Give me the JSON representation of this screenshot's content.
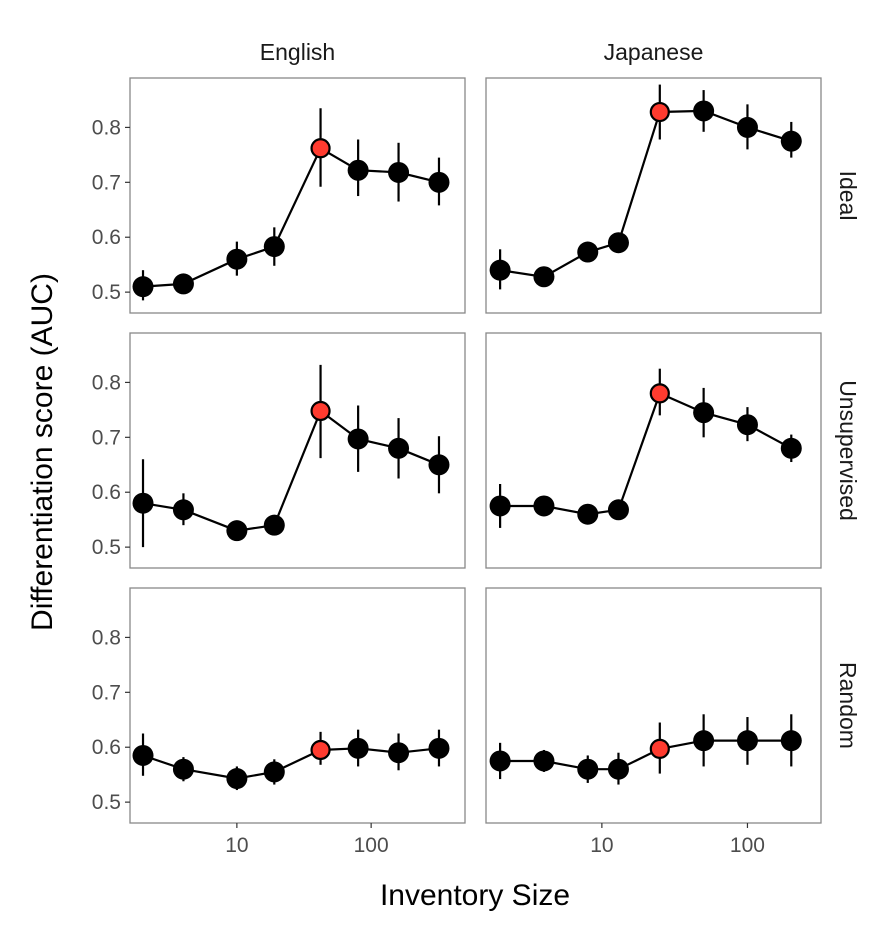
{
  "chart_data": {
    "type": "scatter",
    "layout": "facet-grid",
    "xlabel": "Inventory Size",
    "ylabel": "Differentiation score (AUC)",
    "x_scale": "log10",
    "column_labels": [
      "English",
      "Japanese"
    ],
    "row_labels": [
      "Ideal",
      "Unsupervised",
      "Random"
    ],
    "x_ticks": [
      10,
      100
    ],
    "x_tick_labels": [
      "10",
      "100"
    ],
    "y_ticks": [
      0.5,
      0.6,
      0.7,
      0.8
    ],
    "y_tick_labels": [
      "0.5",
      "0.6",
      "0.7",
      "0.8"
    ],
    "ylim": [
      0.462,
      0.89
    ],
    "colors": {
      "point": "#000000",
      "highlight": "#ff3b2f",
      "line": "#000000",
      "panel_border": "#888888"
    },
    "columns": {
      "English": {
        "x": [
          2,
          4,
          10,
          19,
          42,
          80,
          160,
          320
        ],
        "xlim": [
          1.6,
          500
        ]
      },
      "Japanese": {
        "x": [
          2,
          4,
          8,
          13,
          25,
          50,
          100,
          200
        ],
        "xlim": [
          1.6,
          320
        ]
      }
    },
    "panels": [
      {
        "row": "Ideal",
        "col": "English",
        "highlight_index": 4,
        "y": [
          0.51,
          0.515,
          0.56,
          0.583,
          0.762,
          0.722,
          0.718,
          0.7
        ],
        "y_low": [
          0.485,
          0.505,
          0.53,
          0.548,
          0.692,
          0.675,
          0.665,
          0.658
        ],
        "y_high": [
          0.54,
          0.525,
          0.592,
          0.618,
          0.835,
          0.778,
          0.772,
          0.745
        ]
      },
      {
        "row": "Ideal",
        "col": "Japanese",
        "highlight_index": 4,
        "y": [
          0.54,
          0.528,
          0.573,
          0.59,
          0.828,
          0.83,
          0.8,
          0.775
        ],
        "y_low": [
          0.505,
          0.52,
          0.565,
          0.582,
          0.778,
          0.792,
          0.76,
          0.745
        ],
        "y_high": [
          0.578,
          0.538,
          0.582,
          0.6,
          0.878,
          0.868,
          0.842,
          0.81
        ]
      },
      {
        "row": "Unsupervised",
        "col": "English",
        "highlight_index": 4,
        "y": [
          0.58,
          0.568,
          0.53,
          0.54,
          0.748,
          0.697,
          0.68,
          0.65
        ],
        "y_low": [
          0.5,
          0.54,
          0.522,
          0.532,
          0.662,
          0.637,
          0.625,
          0.598
        ],
        "y_high": [
          0.66,
          0.598,
          0.538,
          0.55,
          0.832,
          0.758,
          0.735,
          0.702
        ]
      },
      {
        "row": "Unsupervised",
        "col": "Japanese",
        "highlight_index": 4,
        "y": [
          0.575,
          0.575,
          0.56,
          0.568,
          0.78,
          0.745,
          0.723,
          0.68
        ],
        "y_low": [
          0.535,
          0.562,
          0.552,
          0.56,
          0.74,
          0.7,
          0.693,
          0.655
        ],
        "y_high": [
          0.615,
          0.588,
          0.568,
          0.576,
          0.825,
          0.79,
          0.755,
          0.705
        ]
      },
      {
        "row": "Random",
        "col": "English",
        "highlight_index": 4,
        "y": [
          0.585,
          0.56,
          0.543,
          0.555,
          0.595,
          0.598,
          0.59,
          0.598
        ],
        "y_low": [
          0.548,
          0.538,
          0.522,
          0.532,
          0.568,
          0.565,
          0.558,
          0.565
        ],
        "y_high": [
          0.625,
          0.582,
          0.565,
          0.578,
          0.628,
          0.632,
          0.625,
          0.632
        ]
      },
      {
        "row": "Random",
        "col": "Japanese",
        "highlight_index": 4,
        "y": [
          0.575,
          0.575,
          0.56,
          0.56,
          0.597,
          0.612,
          0.612,
          0.612
        ],
        "y_low": [
          0.542,
          0.555,
          0.535,
          0.532,
          0.552,
          0.565,
          0.568,
          0.565
        ],
        "y_high": [
          0.608,
          0.595,
          0.585,
          0.59,
          0.645,
          0.66,
          0.655,
          0.66
        ]
      }
    ]
  }
}
